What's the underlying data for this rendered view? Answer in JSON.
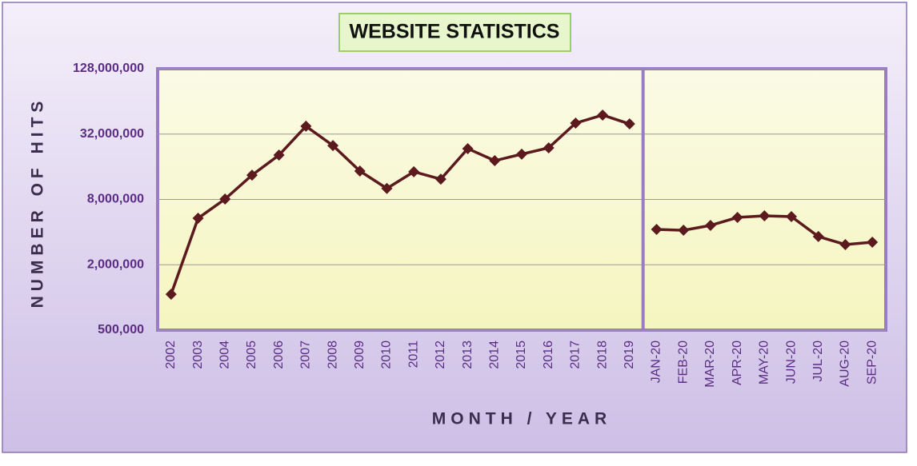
{
  "chart_data": {
    "type": "line",
    "title": "WEBSITE STATISTICS",
    "x_label": "MONTH / YEAR",
    "y_label": "NUMBER OF HITS",
    "categories": [
      "2002",
      "2003",
      "2004",
      "2005",
      "2006",
      "2007",
      "2008",
      "2009",
      "2010",
      "2011",
      "2012",
      "2013",
      "2014",
      "2015",
      "2016",
      "2017",
      "2018",
      "2019",
      "JAN-20",
      "FEB-20",
      "MAR-20",
      "APR-20",
      "MAY-20",
      "JUN-20",
      "JUL-20",
      "AUG-20",
      "SEP-20"
    ],
    "series": [
      {
        "color": "#5c1a1e",
        "values": [
          1070000,
          5370000,
          8060000,
          13400000,
          20500000,
          37800000,
          25100000,
          14600000,
          10100000,
          14400000,
          12300000,
          23500000,
          18200000,
          20900000,
          23900000,
          40400000,
          47900000,
          39700000,
          null,
          null,
          null,
          null,
          null,
          null,
          null,
          null,
          null
        ]
      },
      {
        "color": "#5c1a1e",
        "values": [
          null,
          null,
          null,
          null,
          null,
          null,
          null,
          null,
          null,
          null,
          null,
          null,
          null,
          null,
          null,
          null,
          null,
          null,
          4240000,
          4160000,
          4610000,
          5460000,
          5650000,
          5560000,
          3640000,
          3070000,
          3230000
        ]
      }
    ],
    "log_y": true,
    "ylim": [
      500000,
      128000000
    ],
    "yticks": [
      {
        "value": 500000,
        "label": "500,000"
      },
      {
        "value": 2000000,
        "label": "2,000,000"
      },
      {
        "value": 8000000,
        "label": "8,000,000"
      },
      {
        "value": 32000000,
        "label": "32,000,000"
      },
      {
        "value": 128000000,
        "label": "128,000,000"
      }
    ],
    "grid": true
  }
}
